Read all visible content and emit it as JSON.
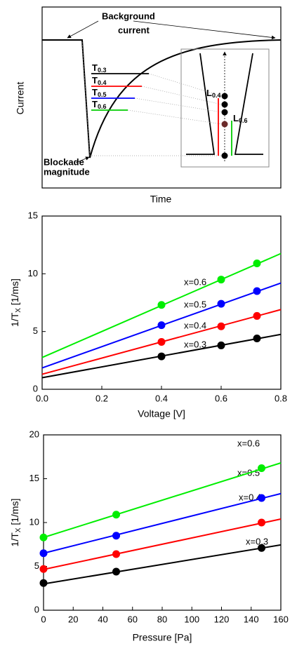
{
  "schematic": {
    "y_label": "Current",
    "x_label": "Time",
    "background_label": [
      "Background",
      "current"
    ],
    "blockade_label": [
      "Blockade",
      "magnitude"
    ],
    "thresholds": [
      {
        "symbol": "T",
        "sub": "0.3",
        "color": "#000000"
      },
      {
        "symbol": "T",
        "sub": "0.4",
        "color": "#ff0000"
      },
      {
        "symbol": "T",
        "sub": "0.5",
        "color": "#0000ff"
      },
      {
        "symbol": "T",
        "sub": "0.6",
        "color": "#00cc00"
      }
    ],
    "lengths": [
      {
        "symbol": "L",
        "sub": "0.4",
        "color": "#ff0000"
      },
      {
        "symbol": "L",
        "sub": "0.6",
        "color": "#00cc00"
      }
    ]
  },
  "chart_data": [
    {
      "type": "scatter",
      "x_label": "Voltage [V]",
      "y_label": {
        "text": "1/T",
        "sub": "X",
        "unit": " [1/ms]"
      },
      "xlim": [
        0,
        0.8
      ],
      "xticks": [
        {
          "value": 0,
          "label": "0.0"
        },
        0.2,
        0.4,
        0.6,
        0.8
      ],
      "ylim": [
        0,
        15
      ],
      "yticks": [
        0,
        5,
        10,
        15
      ],
      "x": [
        0.4,
        0.6,
        0.72
      ],
      "fit_x": [
        0,
        0.8
      ],
      "series": [
        {
          "name": "x=0.3",
          "color": "#000000",
          "values": [
            2.85,
            3.8,
            4.4
          ],
          "fit_values": [
            1.0,
            4.75
          ]
        },
        {
          "name": "x=0.4",
          "color": "#ff0000",
          "values": [
            4.1,
            5.45,
            6.35
          ],
          "fit_values": [
            1.3,
            6.9
          ]
        },
        {
          "name": "x=0.5",
          "color": "#0000ff",
          "values": [
            5.55,
            7.4,
            8.5
          ],
          "fit_values": [
            1.85,
            9.2
          ]
        },
        {
          "name": "x=0.6",
          "color": "#00ee00",
          "values": [
            7.3,
            9.5,
            10.9
          ],
          "fit_values": [
            2.75,
            11.75
          ]
        }
      ]
    },
    {
      "type": "scatter",
      "x_label": "Pressure [Pa]",
      "y_label": {
        "text": "1/T",
        "sub": "X",
        "unit": " [1/ms]"
      },
      "xlim": [
        0,
        160
      ],
      "xticks": [
        0,
        20,
        40,
        60,
        80,
        100,
        120,
        140,
        160
      ],
      "ylim": [
        0,
        20
      ],
      "yticks": [
        0,
        5,
        10,
        15,
        20
      ],
      "x": [
        0,
        49,
        147
      ],
      "fit_x": [
        0,
        160
      ],
      "series": [
        {
          "name": "x=0.3",
          "color": "#000000",
          "values": [
            3.1,
            4.4,
            7.1
          ],
          "fit_values": [
            3.0,
            7.45
          ]
        },
        {
          "name": "x=0.4",
          "color": "#ff0000",
          "values": [
            4.7,
            6.4,
            10.0
          ],
          "fit_values": [
            4.65,
            10.4
          ]
        },
        {
          "name": "x=0.5",
          "color": "#0000ff",
          "values": [
            6.5,
            8.5,
            12.8
          ],
          "fit_values": [
            6.5,
            13.3
          ]
        },
        {
          "name": "x=0.6",
          "color": "#00ee00",
          "values": [
            8.3,
            10.9,
            16.2
          ],
          "fit_values": [
            8.3,
            16.8
          ]
        }
      ]
    }
  ]
}
